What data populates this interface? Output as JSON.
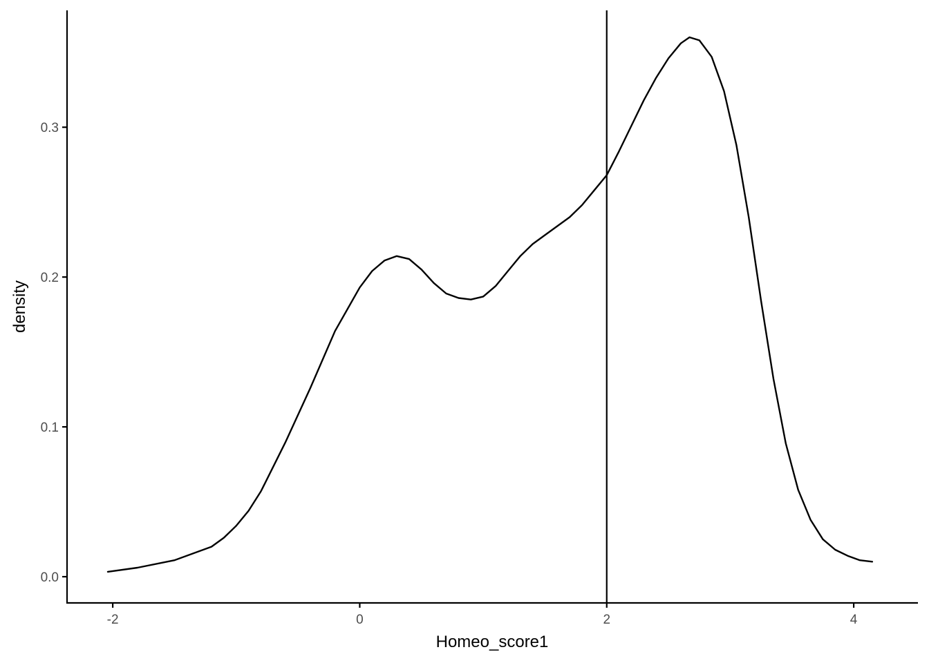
{
  "chart_data": {
    "type": "line",
    "title": "",
    "xlabel": "Homeo_score1",
    "ylabel": "density",
    "xlim": [
      -2.37,
      4.52
    ],
    "ylim": [
      -0.0175,
      0.378
    ],
    "xticks": [
      -2,
      0,
      2,
      4
    ],
    "yticks": [
      0.0,
      0.1,
      0.2,
      0.3
    ],
    "xtick_labels": [
      "-2",
      "0",
      "2",
      "4"
    ],
    "ytick_labels": [
      "0.0",
      "0.1",
      "0.2",
      "0.3"
    ],
    "grid": false,
    "vline": {
      "x": 2
    },
    "series": [
      {
        "x": [
          -2.04,
          -1.8,
          -1.5,
          -1.2,
          -1.1,
          -1.0,
          -0.9,
          -0.8,
          -0.6,
          -0.4,
          -0.2,
          0.0,
          0.1,
          0.2,
          0.3,
          0.4,
          0.5,
          0.6,
          0.7,
          0.8,
          0.9,
          1.0,
          1.1,
          1.2,
          1.3,
          1.4,
          1.5,
          1.6,
          1.7,
          1.8,
          1.9,
          2.0,
          2.1,
          2.2,
          2.3,
          2.4,
          2.5,
          2.6,
          2.67,
          2.75,
          2.85,
          2.95,
          3.05,
          3.15,
          3.25,
          3.35,
          3.45,
          3.55,
          3.65,
          3.75,
          3.85,
          3.95,
          4.05,
          4.15
        ],
        "y": [
          0.0033,
          0.006,
          0.011,
          0.02,
          0.026,
          0.034,
          0.044,
          0.057,
          0.09,
          0.126,
          0.164,
          0.193,
          0.204,
          0.211,
          0.214,
          0.212,
          0.205,
          0.196,
          0.189,
          0.186,
          0.185,
          0.187,
          0.194,
          0.204,
          0.214,
          0.222,
          0.228,
          0.234,
          0.24,
          0.248,
          0.258,
          0.268,
          0.284,
          0.301,
          0.318,
          0.333,
          0.346,
          0.356,
          0.36,
          0.358,
          0.347,
          0.324,
          0.288,
          0.24,
          0.184,
          0.132,
          0.089,
          0.058,
          0.038,
          0.025,
          0.018,
          0.014,
          0.011,
          0.01
        ]
      }
    ]
  }
}
